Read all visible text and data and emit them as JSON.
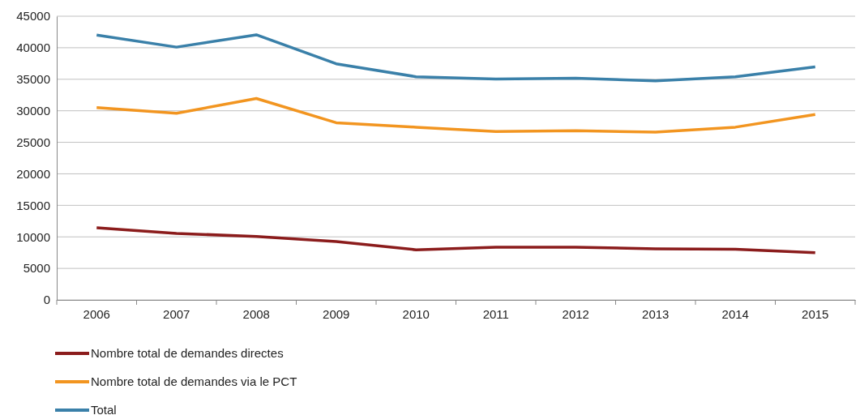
{
  "chart_data": {
    "type": "line",
    "categories": [
      "2006",
      "2007",
      "2008",
      "2009",
      "2010",
      "2011",
      "2012",
      "2013",
      "2014",
      "2015"
    ],
    "series": [
      {
        "name": "Nombre total de demandes directes",
        "color": "#8b1c1c",
        "values": [
          11450,
          10550,
          10050,
          9250,
          7950,
          8350,
          8350,
          8100,
          8050,
          7500
        ]
      },
      {
        "name": "Nombre total de demandes via le PCT",
        "color": "#f29520",
        "values": [
          30500,
          29600,
          31950,
          28100,
          27400,
          26700,
          26850,
          26600,
          27400,
          29400
        ]
      },
      {
        "name": "Total",
        "color": "#3a80a9",
        "values": [
          42000,
          40100,
          42050,
          37450,
          35400,
          35050,
          35150,
          34750,
          35400,
          36950
        ]
      }
    ],
    "ylim": [
      0,
      45000
    ],
    "yticks": [
      0,
      5000,
      10000,
      15000,
      20000,
      25000,
      30000,
      35000,
      40000,
      45000
    ],
    "grid": "y",
    "legend": "bottom",
    "marker": "none",
    "line_style": "solid"
  }
}
